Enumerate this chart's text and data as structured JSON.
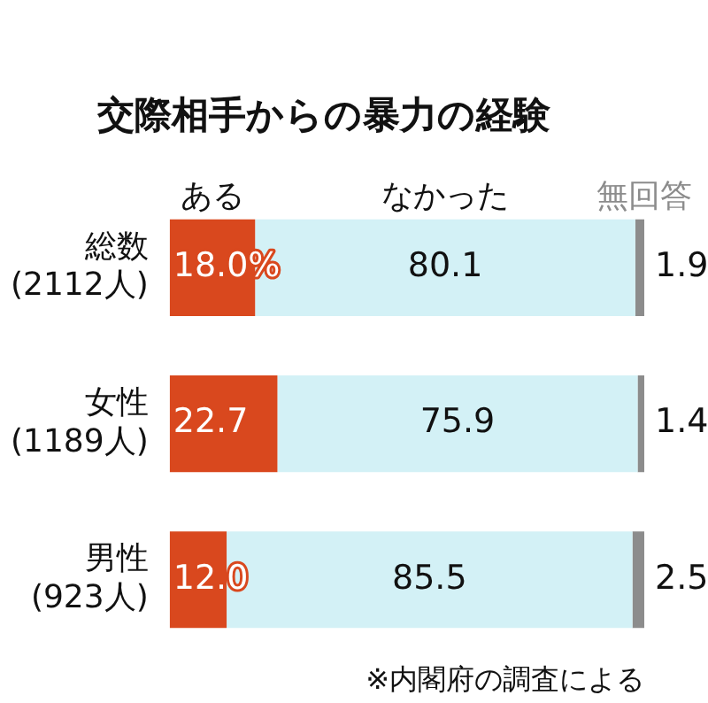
{
  "chart_data": {
    "type": "bar",
    "orientation": "horizontal",
    "stacked": true,
    "title": "交際相手からの暴力の経験",
    "categories": [
      "総数\n(2112人)",
      "女性\n(1189人)",
      "男性\n(923人)"
    ],
    "xlim": [
      0,
      100
    ],
    "series": [
      {
        "name": "ある",
        "color": "#d9481e",
        "values": [
          18.0,
          22.7,
          12.0
        ],
        "value_labels": [
          "18.0%",
          "22.7",
          "12.0"
        ]
      },
      {
        "name": "なかった",
        "color": "#d3f1f6",
        "values": [
          80.1,
          75.9,
          85.5
        ],
        "value_labels": [
          "80.1",
          "75.9",
          "85.5"
        ]
      },
      {
        "name": "無回答",
        "color": "#8c8c8c",
        "values": [
          1.9,
          1.4,
          2.5
        ],
        "value_labels": [
          "1.9",
          "1.4",
          "2.5"
        ]
      }
    ],
    "annotations": [
      "※内閣府の調査による"
    ]
  }
}
